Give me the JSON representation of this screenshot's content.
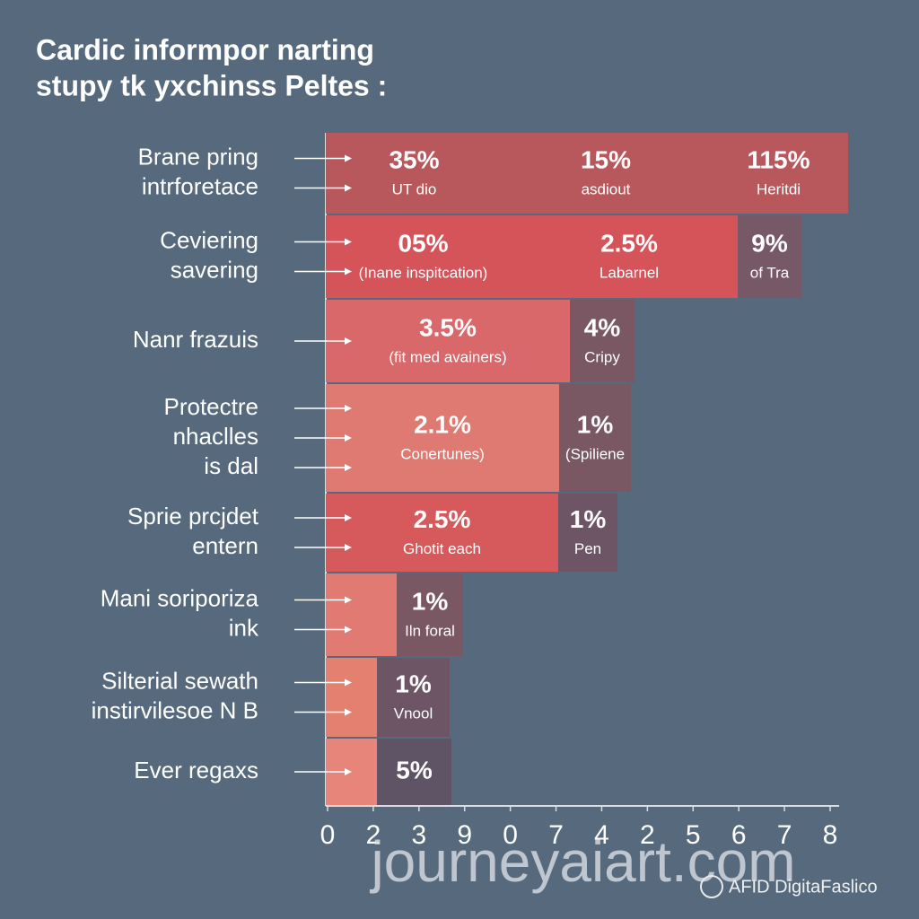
{
  "title": [
    "Cardic informpor narting",
    "stupy tk yxchinss Peltes :"
  ],
  "rows": [
    {
      "label": [
        "Brane pring",
        "intrforetace"
      ],
      "segments": [
        {
          "value": "35%",
          "note": "UT dio"
        },
        {
          "value": "15%",
          "note": "asdiout"
        },
        {
          "value": "115%",
          "note": "Heritdi"
        }
      ]
    },
    {
      "label": [
        "Ceviering",
        "savering"
      ],
      "segments": [
        {
          "value": "05%",
          "note": "(Inane inspitcation)"
        },
        {
          "value": "2.5%",
          "note": "Labarnel"
        },
        {
          "value": "9%",
          "note": "of Tra"
        }
      ]
    },
    {
      "label": [
        "Nanr frazuis"
      ],
      "segments": [
        {
          "value": "3.5%",
          "note": "(fit med avainers)"
        },
        {
          "value": "4%",
          "note": "Cripy"
        }
      ]
    },
    {
      "label": [
        "Protectre",
        "nhaclles",
        "is dal"
      ],
      "segments": [
        {
          "value": "2.1%",
          "note": "Conertunes)"
        },
        {
          "value": "1%",
          "note": "(Spiliene"
        }
      ]
    },
    {
      "label": [
        "Sprie prcjdet",
        "entern"
      ],
      "segments": [
        {
          "value": "2.5%",
          "note": "Ghotit each"
        },
        {
          "value": "1%",
          "note": "Pen"
        }
      ]
    },
    {
      "label": [
        "Mani soriporiza",
        "ink"
      ],
      "segments": [
        {
          "value": "1%",
          "note": "Iln foral"
        }
      ]
    },
    {
      "label": [
        "Silterial sewath",
        "instirvilesoe N B"
      ],
      "segments": [
        {
          "value": "1%",
          "note": "Vnool"
        }
      ]
    },
    {
      "label": [
        "Ever regaxs"
      ],
      "segments": [
        {
          "value": "5%"
        }
      ]
    }
  ],
  "axis_labels": [
    "0",
    "2",
    "3",
    "9",
    "0",
    "7",
    "4",
    "2",
    "5",
    "6",
    "7",
    "8"
  ],
  "watermark": "journeyaiart.com",
  "badge": "AFID DigitaFaslico"
}
